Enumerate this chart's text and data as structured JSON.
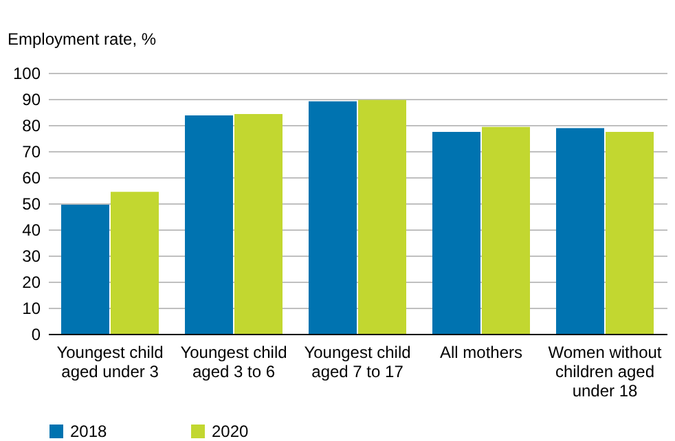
{
  "chart_data": {
    "type": "bar",
    "ylabel": "Employment rate, %",
    "categories": [
      "Youngest child aged under 3",
      "Youngest child aged 3 to 6",
      "Youngest child aged 7 to 17",
      "All mothers",
      "Women without children aged under 18"
    ],
    "series": [
      {
        "name": "2018",
        "color": "#0073b0",
        "values": [
          49.5,
          83.7,
          89.1,
          77.4,
          78.8
        ]
      },
      {
        "name": "2020",
        "color": "#c2d730",
        "values": [
          54.4,
          84.2,
          89.6,
          79.3,
          77.4
        ]
      }
    ],
    "ylim": [
      0,
      100
    ],
    "yticks": [
      0,
      10,
      20,
      30,
      40,
      50,
      60,
      70,
      80,
      90,
      100
    ],
    "grid": "y",
    "legend": "bottom"
  }
}
